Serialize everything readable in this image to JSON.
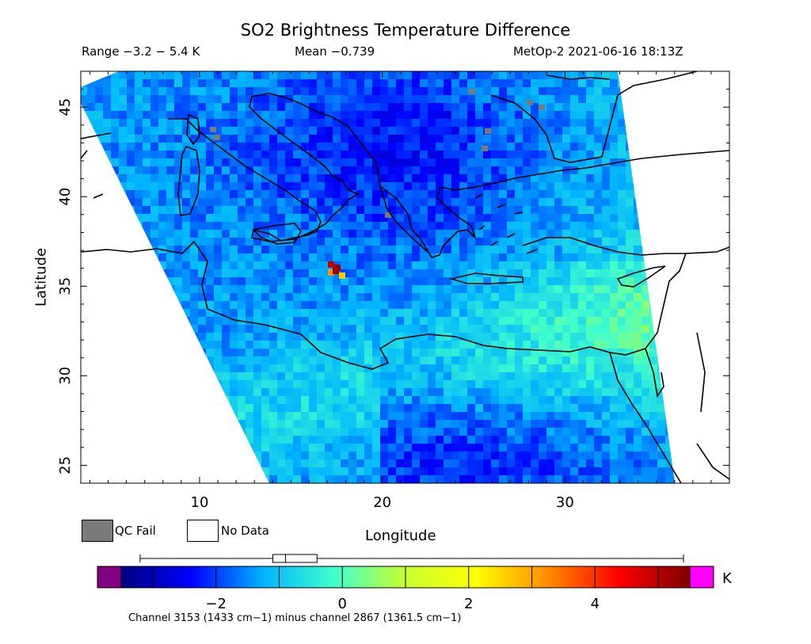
{
  "header": {
    "title": "SO2 Brightness Temperature Difference",
    "range": "Range −3.2 − 5.4 K",
    "mean": "Mean −0.739",
    "source": "MetOp-2 2021-06-16 18:13Z"
  },
  "map": {
    "x_axis_label": "Longitude",
    "y_axis_label": "Latitude",
    "lon_range": [
      3.5,
      39
    ],
    "lat_range": [
      24,
      47
    ],
    "x_ticks": [
      "10",
      "20",
      "30"
    ],
    "y_ticks": [
      "45",
      "40",
      "35",
      "30",
      "25"
    ]
  },
  "legend": {
    "qc_fail": "QC Fail",
    "no_data": "No Data",
    "qc_color": "#7a7a7a"
  },
  "colorbar": {
    "min": -3.5,
    "max": 5.5,
    "unit": "K",
    "tick_labels": [
      "−2",
      "0",
      "2",
      "4"
    ],
    "tick_values": [
      -2,
      0,
      2,
      4
    ],
    "under_color": "#800080",
    "over_color": "#ff00ff",
    "stops": [
      "#00007f",
      "#0000ff",
      "#00b4ff",
      "#40ffcc",
      "#c8ff30",
      "#ffff00",
      "#ff8c00",
      "#ff0000",
      "#7f0000"
    ],
    "box_whisker": {
      "min": -3.2,
      "q1": -1.1,
      "median": -0.9,
      "q3": -0.4,
      "max": 5.4
    }
  },
  "caption": "Channel 3153 (1433 cm−1) minus channel 2867 (1361.5 cm−1)"
}
